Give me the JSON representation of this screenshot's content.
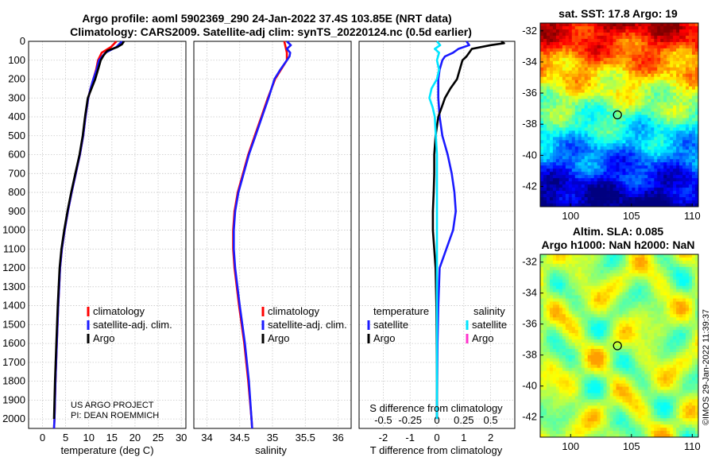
{
  "title": {
    "line1": "Argo profile: aoml 5902369_290 24-Jan-2022 37.4S 103.85E (NRT data)",
    "line2": "Climatology: CARS2009. Satellite-adj clim: synTS_20220124.nc (0.5d earlier)"
  },
  "colors": {
    "climatology": "#ff0000",
    "satellite": "#1a1aff",
    "argo": "#000000",
    "satellite_s": "#00e5ff",
    "argo_s": "#ff33cc",
    "grid": "#c8c8c8"
  },
  "depth_ticks": [
    "0",
    "100",
    "200",
    "300",
    "400",
    "500",
    "600",
    "700",
    "800",
    "900",
    "1000",
    "1100",
    "1200",
    "1300",
    "1400",
    "1500",
    "1600",
    "1700",
    "1800",
    "1900",
    "2000"
  ],
  "chart_data": [
    {
      "type": "line",
      "name": "temperature",
      "xlabel": "temperature (deg C)",
      "ylabel": "depth",
      "xlim": [
        -3,
        31
      ],
      "ylim": [
        2050,
        0
      ],
      "xticks": [
        "0",
        "5",
        "10",
        "15",
        "20",
        "25",
        "30"
      ],
      "legend": {
        "clim": "climatology",
        "sat": "satellite-adj. clim.",
        "argo": "Argo"
      },
      "credit": [
        "US ARGO PROJECT",
        "PI: DEAN ROEMMICH"
      ],
      "series": [
        {
          "name": "climatology",
          "depth": [
            0,
            30,
            60,
            100,
            150,
            200,
            250,
            300,
            400,
            500,
            600,
            700,
            800,
            900,
            1000,
            1100,
            1200,
            1400,
            1600,
            1800,
            2000,
            2050
          ],
          "values": [
            16.0,
            14.8,
            12.8,
            12.0,
            11.6,
            11.0,
            10.4,
            9.9,
            9.3,
            8.8,
            8.1,
            7.2,
            6.3,
            5.5,
            4.8,
            4.2,
            3.8,
            3.4,
            3.1,
            2.8,
            2.6,
            2.5
          ]
        },
        {
          "name": "satellite-adj. clim.",
          "depth": [
            0,
            30,
            60,
            100,
            150,
            200,
            250,
            300,
            400,
            500,
            600,
            700,
            800,
            900,
            1000,
            1100,
            1200,
            1400,
            1600,
            1800,
            2000,
            2050
          ],
          "values": [
            17.2,
            16.0,
            13.6,
            12.2,
            11.7,
            11.0,
            10.4,
            9.9,
            9.3,
            8.8,
            8.1,
            7.2,
            6.3,
            5.5,
            4.8,
            4.2,
            3.8,
            3.4,
            3.1,
            2.8,
            2.6,
            2.5
          ]
        },
        {
          "name": "Argo",
          "depth": [
            0,
            15,
            30,
            50,
            75,
            100,
            150,
            200,
            250,
            300,
            400,
            500,
            600,
            700,
            800,
            900,
            1000,
            1100,
            1200,
            1400,
            1600,
            1800,
            2000
          ],
          "values": [
            17.6,
            17.2,
            16.2,
            14.0,
            13.2,
            12.6,
            12.0,
            11.4,
            10.6,
            9.8,
            9.2,
            8.7,
            8.0,
            7.1,
            6.2,
            5.4,
            4.7,
            4.1,
            3.7,
            3.3,
            3.0,
            2.7,
            2.5
          ]
        }
      ]
    },
    {
      "type": "line",
      "name": "salinity",
      "xlabel": "salinity",
      "ylabel": "depth",
      "xlim": [
        33.8,
        36.2
      ],
      "ylim": [
        2050,
        0
      ],
      "xticks": [
        "34",
        "34.5",
        "35",
        "35.5",
        "36"
      ],
      "legend": {
        "clim": "climatology",
        "sat": "satellite-adj. clim.",
        "argo": "Argo"
      },
      "series": [
        {
          "name": "climatology",
          "depth": [
            0,
            30,
            60,
            100,
            150,
            200,
            300,
            400,
            500,
            600,
            700,
            800,
            900,
            1000,
            1100,
            1200,
            1400,
            1600,
            1800,
            2000,
            2050
          ],
          "values": [
            35.18,
            35.2,
            35.22,
            35.22,
            35.13,
            35.04,
            34.93,
            34.83,
            34.73,
            34.63,
            34.55,
            34.47,
            34.42,
            34.4,
            34.4,
            34.42,
            34.49,
            34.57,
            34.63,
            34.68,
            34.69
          ]
        },
        {
          "name": "satellite-adj. clim.",
          "depth": [
            0,
            20,
            40,
            60,
            80,
            100,
            150,
            200,
            300,
            400,
            500,
            600,
            700,
            800,
            900,
            1000,
            1100,
            1200,
            1400,
            1600,
            1800,
            2000,
            2050
          ],
          "values": [
            35.22,
            35.28,
            35.22,
            35.27,
            35.26,
            35.22,
            35.12,
            35.03,
            34.94,
            34.84,
            34.74,
            34.64,
            34.56,
            34.48,
            34.43,
            34.41,
            34.41,
            34.43,
            34.5,
            34.58,
            34.64,
            34.68,
            34.69
          ]
        }
      ]
    },
    {
      "type": "line",
      "name": "difference",
      "xlabel": "T difference from climatology",
      "top_axis_label": "S difference from climatology",
      "xlim": [
        -2.9,
        2.9
      ],
      "ylim": [
        2050,
        0
      ],
      "xticks": [
        "-2",
        "-1",
        "0",
        "1",
        "2"
      ],
      "sticks": [
        "-0.5",
        "-0.25",
        "0",
        "0.25",
        "0.5"
      ],
      "legend": {
        "temp_head": "temperature",
        "sal_head": "salinity",
        "sat": "satellite",
        "argo": "Argo"
      },
      "series": [
        {
          "name": "T satellite",
          "depth": [
            0,
            20,
            40,
            60,
            80,
            100,
            150,
            200,
            300,
            400,
            500,
            600,
            700,
            800,
            900,
            1000,
            1100,
            1200,
            1400,
            1600,
            1800,
            2000
          ],
          "values": [
            1.1,
            1.2,
            0.8,
            0.6,
            0.3,
            0.2,
            0.1,
            0.05,
            0.05,
            0.1,
            0.2,
            0.4,
            0.55,
            0.65,
            0.7,
            0.6,
            0.35,
            0.1,
            0.05,
            0.02,
            0.01,
            0.0
          ]
        },
        {
          "name": "T Argo",
          "depth": [
            0,
            10,
            20,
            40,
            60,
            80,
            100,
            150,
            200,
            250,
            300,
            400,
            500,
            600,
            700,
            800,
            900,
            1000,
            1100,
            1200,
            1400,
            1600,
            1800,
            2000
          ],
          "values": [
            2.4,
            2.5,
            2.0,
            1.3,
            1.2,
            1.1,
            0.95,
            0.85,
            0.75,
            0.5,
            0.3,
            0.05,
            -0.05,
            -0.1,
            -0.1,
            -0.12,
            -0.15,
            -0.15,
            -0.1,
            -0.05,
            -0.02,
            -0.01,
            0.0,
            0.0
          ]
        },
        {
          "name": "S satellite",
          "depth": [
            0,
            20,
            40,
            60,
            100,
            150,
            200,
            250,
            300,
            350,
            400,
            500,
            600,
            800,
            1000,
            1200,
            1400,
            1600,
            1800,
            2000
          ],
          "values": [
            0.0,
            0.03,
            -0.02,
            0.02,
            0.0,
            0.02,
            0.0,
            -0.05,
            -0.07,
            -0.04,
            -0.02,
            -0.01,
            0.0,
            0.0,
            0.0,
            0.0,
            0.0,
            0.0,
            0.0,
            0.0
          ]
        }
      ]
    },
    {
      "type": "heatmap",
      "name": "sst_map",
      "title": "sat. SST: 17.8 Argo: 19",
      "xticks": [
        "100",
        "105",
        "110"
      ],
      "yticks": [
        "-32",
        "-34",
        "-36",
        "-38",
        "-40",
        "-42"
      ],
      "xlim": [
        97.5,
        110.5
      ],
      "ylim": [
        -43.3,
        -31.5
      ],
      "marker": {
        "lon": 103.85,
        "lat": -37.4
      }
    },
    {
      "type": "heatmap",
      "name": "sla_map",
      "title_line1": "Altim. SLA: 0.085",
      "title_line2": "Argo h1000: NaN h2000: NaN",
      "xticks": [
        "100",
        "105",
        "110"
      ],
      "yticks": [
        "-32",
        "-34",
        "-36",
        "-38",
        "-40",
        "-42"
      ],
      "xlim": [
        97.5,
        110.5
      ],
      "ylim": [
        -43.3,
        -31.5
      ],
      "marker": {
        "lon": 103.85,
        "lat": -37.4
      }
    }
  ],
  "footer": {
    "timestamp": "©IMOS 29-Jan-2022 11:39:37"
  }
}
